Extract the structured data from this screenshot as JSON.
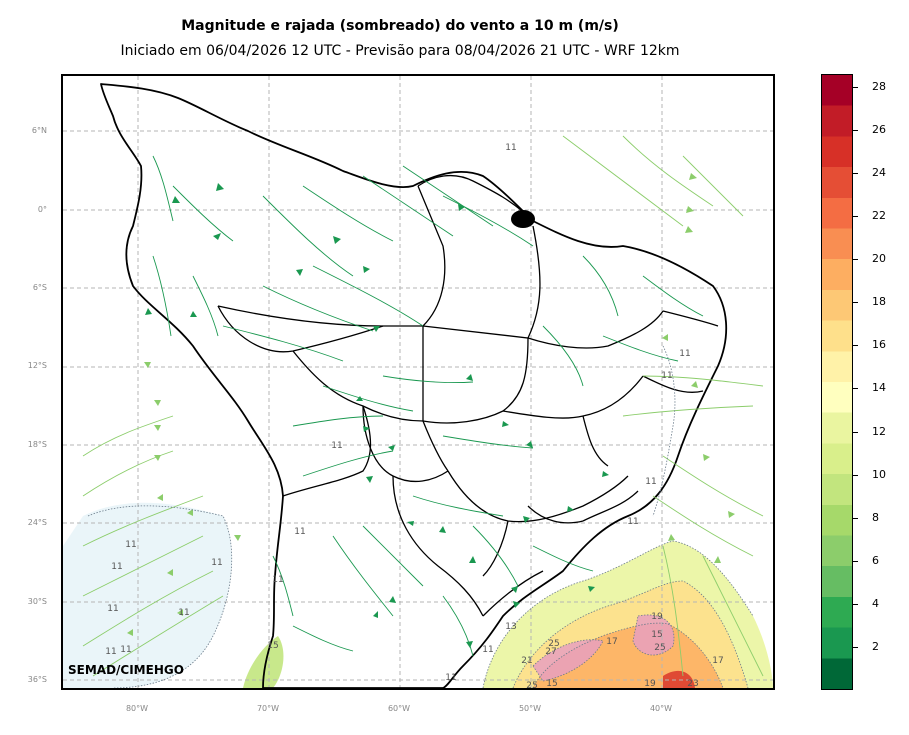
{
  "title": "Magnitude e rajada (sombreado) do vento a 10 m (m/s)",
  "subtitle": "Iniciado em 06/04/2026 12 UTC - Previsão para 08/04/2026 21 UTC - WRF 12km",
  "credit": "SEMAD/CIMEHGO",
  "lat_labels": [
    "6°N",
    "0°",
    "6°S",
    "12°S",
    "18°S",
    "24°S",
    "30°S",
    "36°S"
  ],
  "lon_labels": [
    "80°W",
    "70°W",
    "60°W",
    "50°W",
    "40°W"
  ],
  "colorbar": {
    "labels": [
      "2",
      "4",
      "6",
      "8",
      "10",
      "12",
      "14",
      "16",
      "18",
      "20",
      "22",
      "24",
      "26",
      "28"
    ],
    "colors": [
      "#006837",
      "#1a9850",
      "#2eaa52",
      "#66bd63",
      "#8ccd6b",
      "#a6d96a",
      "#c2e57e",
      "#d9ef8b",
      "#eaf5a0",
      "#ffffbf",
      "#fff2a8",
      "#fee08b",
      "#fdc875",
      "#fdae61",
      "#f98e52",
      "#f46d43",
      "#e54e35",
      "#d73027",
      "#c21c27",
      "#a50026"
    ]
  },
  "contour_values": [
    "11",
    "11",
    "11",
    "11",
    "11",
    "11",
    "11",
    "11",
    "11",
    "11",
    "11",
    "11",
    "11",
    "11",
    "11",
    "11",
    "11",
    "13",
    "15",
    "15",
    "17",
    "17",
    "19",
    "19",
    "21",
    "23",
    "25",
    "25",
    "25",
    "27",
    "15"
  ]
}
